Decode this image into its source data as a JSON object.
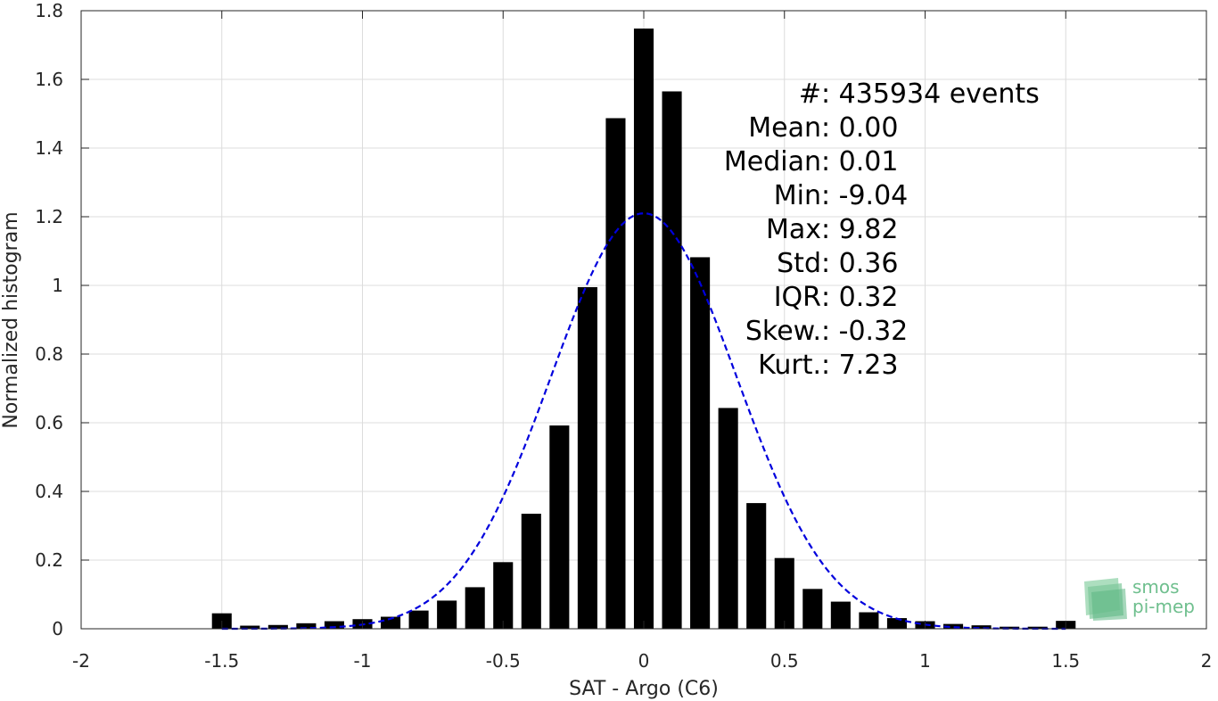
{
  "chart_data": {
    "type": "bar",
    "xlabel": "SAT - Argo (C6)",
    "ylabel": "Normalized histogram",
    "xlim": [
      -2,
      2
    ],
    "ylim": [
      0,
      1.8
    ],
    "xticks": [
      -2,
      -1.5,
      -1,
      -0.5,
      0,
      0.5,
      1,
      1.5,
      2
    ],
    "xtick_labels": [
      "-2",
      "-1.5",
      "-1",
      "-0.5",
      "0",
      "0.5",
      "1",
      "1.5",
      "2"
    ],
    "yticks": [
      0,
      0.2,
      0.4,
      0.6,
      0.8,
      1,
      1.2,
      1.4,
      1.6,
      1.8
    ],
    "ytick_labels": [
      "0",
      "0.2",
      "0.4",
      "0.6",
      "0.8",
      "1",
      "1.2",
      "1.4",
      "1.6",
      "1.8"
    ],
    "grid": true,
    "bar_color": "#000000",
    "bin_centers": [
      -1.5,
      -1.4,
      -1.3,
      -1.2,
      -1.1,
      -1.0,
      -0.9,
      -0.8,
      -0.7,
      -0.6,
      -0.5,
      -0.4,
      -0.3,
      -0.2,
      -0.1,
      0.0,
      0.1,
      0.2,
      0.3,
      0.4,
      0.5,
      0.6,
      0.7,
      0.8,
      0.9,
      1.0,
      1.1,
      1.2,
      1.3,
      1.4,
      1.5
    ],
    "values": [
      0.045,
      0.009,
      0.011,
      0.016,
      0.022,
      0.028,
      0.035,
      0.053,
      0.082,
      0.121,
      0.194,
      0.335,
      0.592,
      0.995,
      1.487,
      1.748,
      1.565,
      1.082,
      0.643,
      0.366,
      0.206,
      0.116,
      0.079,
      0.048,
      0.031,
      0.022,
      0.014,
      0.01,
      0.006,
      0.006,
      0.023
    ],
    "fit_curve": {
      "type": "gaussian",
      "mean": 0.0,
      "std": 0.33,
      "peak": 1.21,
      "x_range": [
        -1.5,
        1.5
      ],
      "color": "#0000dd",
      "style": "dashed"
    },
    "stats_lines": [
      {
        "label": "#  ",
        "value": ": 435934 events"
      },
      {
        "label": "Mean ",
        "value": ": 0.00"
      },
      {
        "label": "Median ",
        "value": ": 0.01"
      },
      {
        "label": "Min ",
        "value": ": -9.04"
      },
      {
        "label": "Max ",
        "value": ": 9.82"
      },
      {
        "label": "Std ",
        "value": ": 0.36"
      },
      {
        "label": "IQR ",
        "value": ": 0.32"
      },
      {
        "label": "Skew. ",
        "value": ": -0.32"
      },
      {
        "label": "Kurt. ",
        "value": ": 7.23"
      }
    ]
  },
  "logo": {
    "line1": "smos",
    "line2": "pi-mep",
    "color": "#6fbf8e"
  }
}
